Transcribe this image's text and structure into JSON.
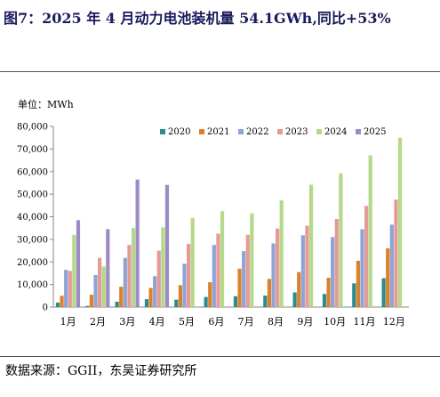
{
  "title": "图7：2025 年 4 月动力电池装机量 54.1GWh,同比+53%",
  "source": "数据来源：GGII，东吴证券研究所",
  "colors": {
    "title": "#1a1a5e",
    "series": [
      "#2e8b8b",
      "#d9822b",
      "#8ea4d6",
      "#e59a96",
      "#b5d98a",
      "#9d8bc6"
    ]
  },
  "chart_data": {
    "type": "bar",
    "ylabel": "单位：MWh",
    "ylim": [
      0,
      80000
    ],
    "yticks": [
      "0",
      "10,000",
      "20,000",
      "30,000",
      "40,000",
      "50,000",
      "60,000",
      "70,000",
      "80,000"
    ],
    "categories": [
      "1月",
      "2月",
      "3月",
      "4月",
      "5月",
      "6月",
      "7月",
      "8月",
      "9月",
      "10月",
      "11月",
      "12月"
    ],
    "legend_position": "top-center",
    "grid": false,
    "series": [
      {
        "name": "2020",
        "values": [
          2000,
          500,
          2400,
          3500,
          3300,
          4500,
          4800,
          5100,
          6500,
          5800,
          10500,
          12800
        ]
      },
      {
        "name": "2021",
        "values": [
          5000,
          5500,
          9000,
          8500,
          9700,
          11000,
          17000,
          12500,
          15500,
          13000,
          20500,
          26000
        ]
      },
      {
        "name": "2022",
        "values": [
          16500,
          14200,
          21800,
          13700,
          19200,
          27500,
          24800,
          28200,
          31800,
          31000,
          34500,
          36500
        ]
      },
      {
        "name": "2023",
        "values": [
          16000,
          21800,
          27500,
          25000,
          28000,
          32500,
          32000,
          34800,
          36000,
          39000,
          44800,
          47600
        ]
      },
      {
        "name": "2024",
        "values": [
          32000,
          18000,
          35000,
          35300,
          39500,
          42500,
          41500,
          47200,
          54200,
          59200,
          67200,
          75000
        ]
      },
      {
        "name": "2025",
        "values": [
          38500,
          34500,
          56500,
          54100,
          null,
          null,
          null,
          null,
          null,
          null,
          null,
          null
        ]
      }
    ]
  }
}
